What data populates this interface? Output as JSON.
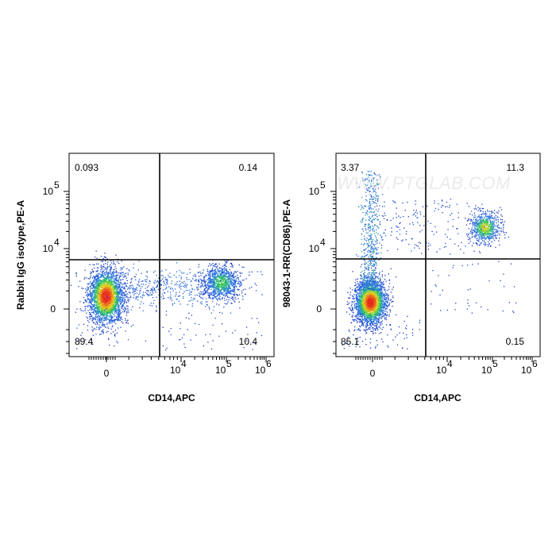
{
  "chart_data": [
    {
      "type": "scatter",
      "plot_style": "pseudocolor density dot plot (blue to green to yellow to red)",
      "xlabel": "CD14,APC",
      "ylabel": "Rabbit IgG isotype,PE-A",
      "x_ticks": [
        "0",
        "10",
        "10",
        "10"
      ],
      "x_tick_exponents": [
        "",
        "4",
        "5",
        "6"
      ],
      "y_ticks": [
        "0",
        "10",
        "10"
      ],
      "y_tick_exponents": [
        "",
        "4",
        "5"
      ],
      "scale": "biexponential",
      "quadrant_gate": {
        "x_threshold": 3000,
        "y_threshold": 5000
      },
      "quadrants": [
        {
          "position": "upper-left",
          "percent": "0.093"
        },
        {
          "position": "upper-right",
          "percent": "0.14"
        },
        {
          "position": "lower-left",
          "percent": "89.4"
        },
        {
          "position": "lower-right",
          "percent": "10.4"
        }
      ],
      "populations": [
        {
          "cx": 0,
          "cy": 0,
          "share": 0.894
        },
        {
          "cx": 110000,
          "cy": 0,
          "share": 0.104
        }
      ]
    },
    {
      "type": "scatter",
      "plot_style": "pseudocolor density dot plot (blue to green to yellow to red)",
      "xlabel": "CD14,APC",
      "ylabel": "98043-1-RR(CD86),PE-A",
      "x_ticks": [
        "0",
        "10",
        "10",
        "10"
      ],
      "x_tick_exponents": [
        "",
        "4",
        "5",
        "6"
      ],
      "y_ticks": [
        "0",
        "10",
        "10"
      ],
      "y_tick_exponents": [
        "",
        "4",
        "5"
      ],
      "scale": "biexponential",
      "quadrant_gate": {
        "x_threshold": 3000,
        "y_threshold": 5000
      },
      "quadrants": [
        {
          "position": "upper-left",
          "percent": "3.37"
        },
        {
          "position": "upper-right",
          "percent": "11.3"
        },
        {
          "position": "lower-left",
          "percent": "85.1"
        },
        {
          "position": "lower-right",
          "percent": "0.15"
        }
      ],
      "populations": [
        {
          "cx": 0,
          "cy": 0,
          "share": 0.851
        },
        {
          "cx": 110000,
          "cy": 20000,
          "share": 0.113
        },
        {
          "cx": 0,
          "cy": 8000,
          "share": 0.034
        }
      ],
      "watermark": "WWW.PTGLAB.COM"
    }
  ],
  "colors": {
    "density_low": "#1a2fbf",
    "density_mid": "#22c45a",
    "density_high": "#e8d21a",
    "density_peak": "#e8261c",
    "gate_line": "#000000",
    "frame": "#000000"
  }
}
